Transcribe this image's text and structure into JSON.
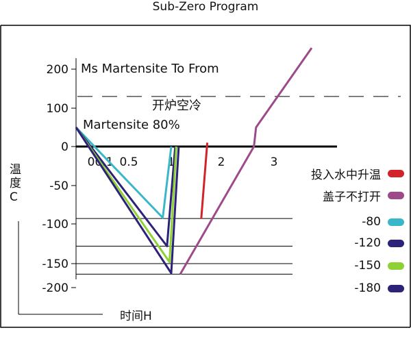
{
  "chart_data": {
    "type": "line",
    "title": "Sub-Zero Program",
    "xlabel": "时间H",
    "ylabel": "温度C",
    "ylim": [
      -200,
      250
    ],
    "y_ticks": [
      "200",
      "100",
      "0",
      "-50",
      "-100",
      "-150",
      "-200"
    ],
    "x_ticks": [
      "0",
      "0.1",
      "0.5",
      "1",
      "2",
      "3"
    ],
    "annotations": {
      "ms_line": "Ms Martensite To From",
      "furnace_open": "开炉空冷",
      "martensite_80": "Martensite 80%"
    },
    "reference_lines": {
      "ms": 130,
      "martensite_80": 50
    },
    "series": [
      {
        "name": "投入水中升温",
        "color": "#d2232a",
        "points": [
          [
            1.6,
            -93
          ],
          [
            1.72,
            10
          ]
        ]
      },
      {
        "name": "盖子不打开",
        "color": "#9c4a8a",
        "points": [
          [
            1.18,
            -172
          ],
          [
            2.62,
            0
          ],
          [
            2.66,
            50
          ],
          [
            3.2,
            255
          ]
        ]
      },
      {
        "name": "-80",
        "color": "#39b7c8",
        "points": [
          [
            0,
            50
          ],
          [
            0.9,
            -92
          ],
          [
            1.0,
            0
          ]
        ]
      },
      {
        "name": "-120",
        "color": "#2c2277",
        "points": [
          [
            0,
            50
          ],
          [
            0.95,
            -128
          ],
          [
            1.08,
            0
          ]
        ]
      },
      {
        "name": "-150",
        "color": "#8ed134",
        "points": [
          [
            0,
            50
          ],
          [
            0.98,
            -148
          ],
          [
            1.1,
            0
          ]
        ]
      },
      {
        "name": "-180",
        "color": "#2c2277",
        "points": [
          [
            0,
            50
          ],
          [
            1.0,
            -170
          ],
          [
            1.15,
            0
          ]
        ]
      }
    ]
  }
}
